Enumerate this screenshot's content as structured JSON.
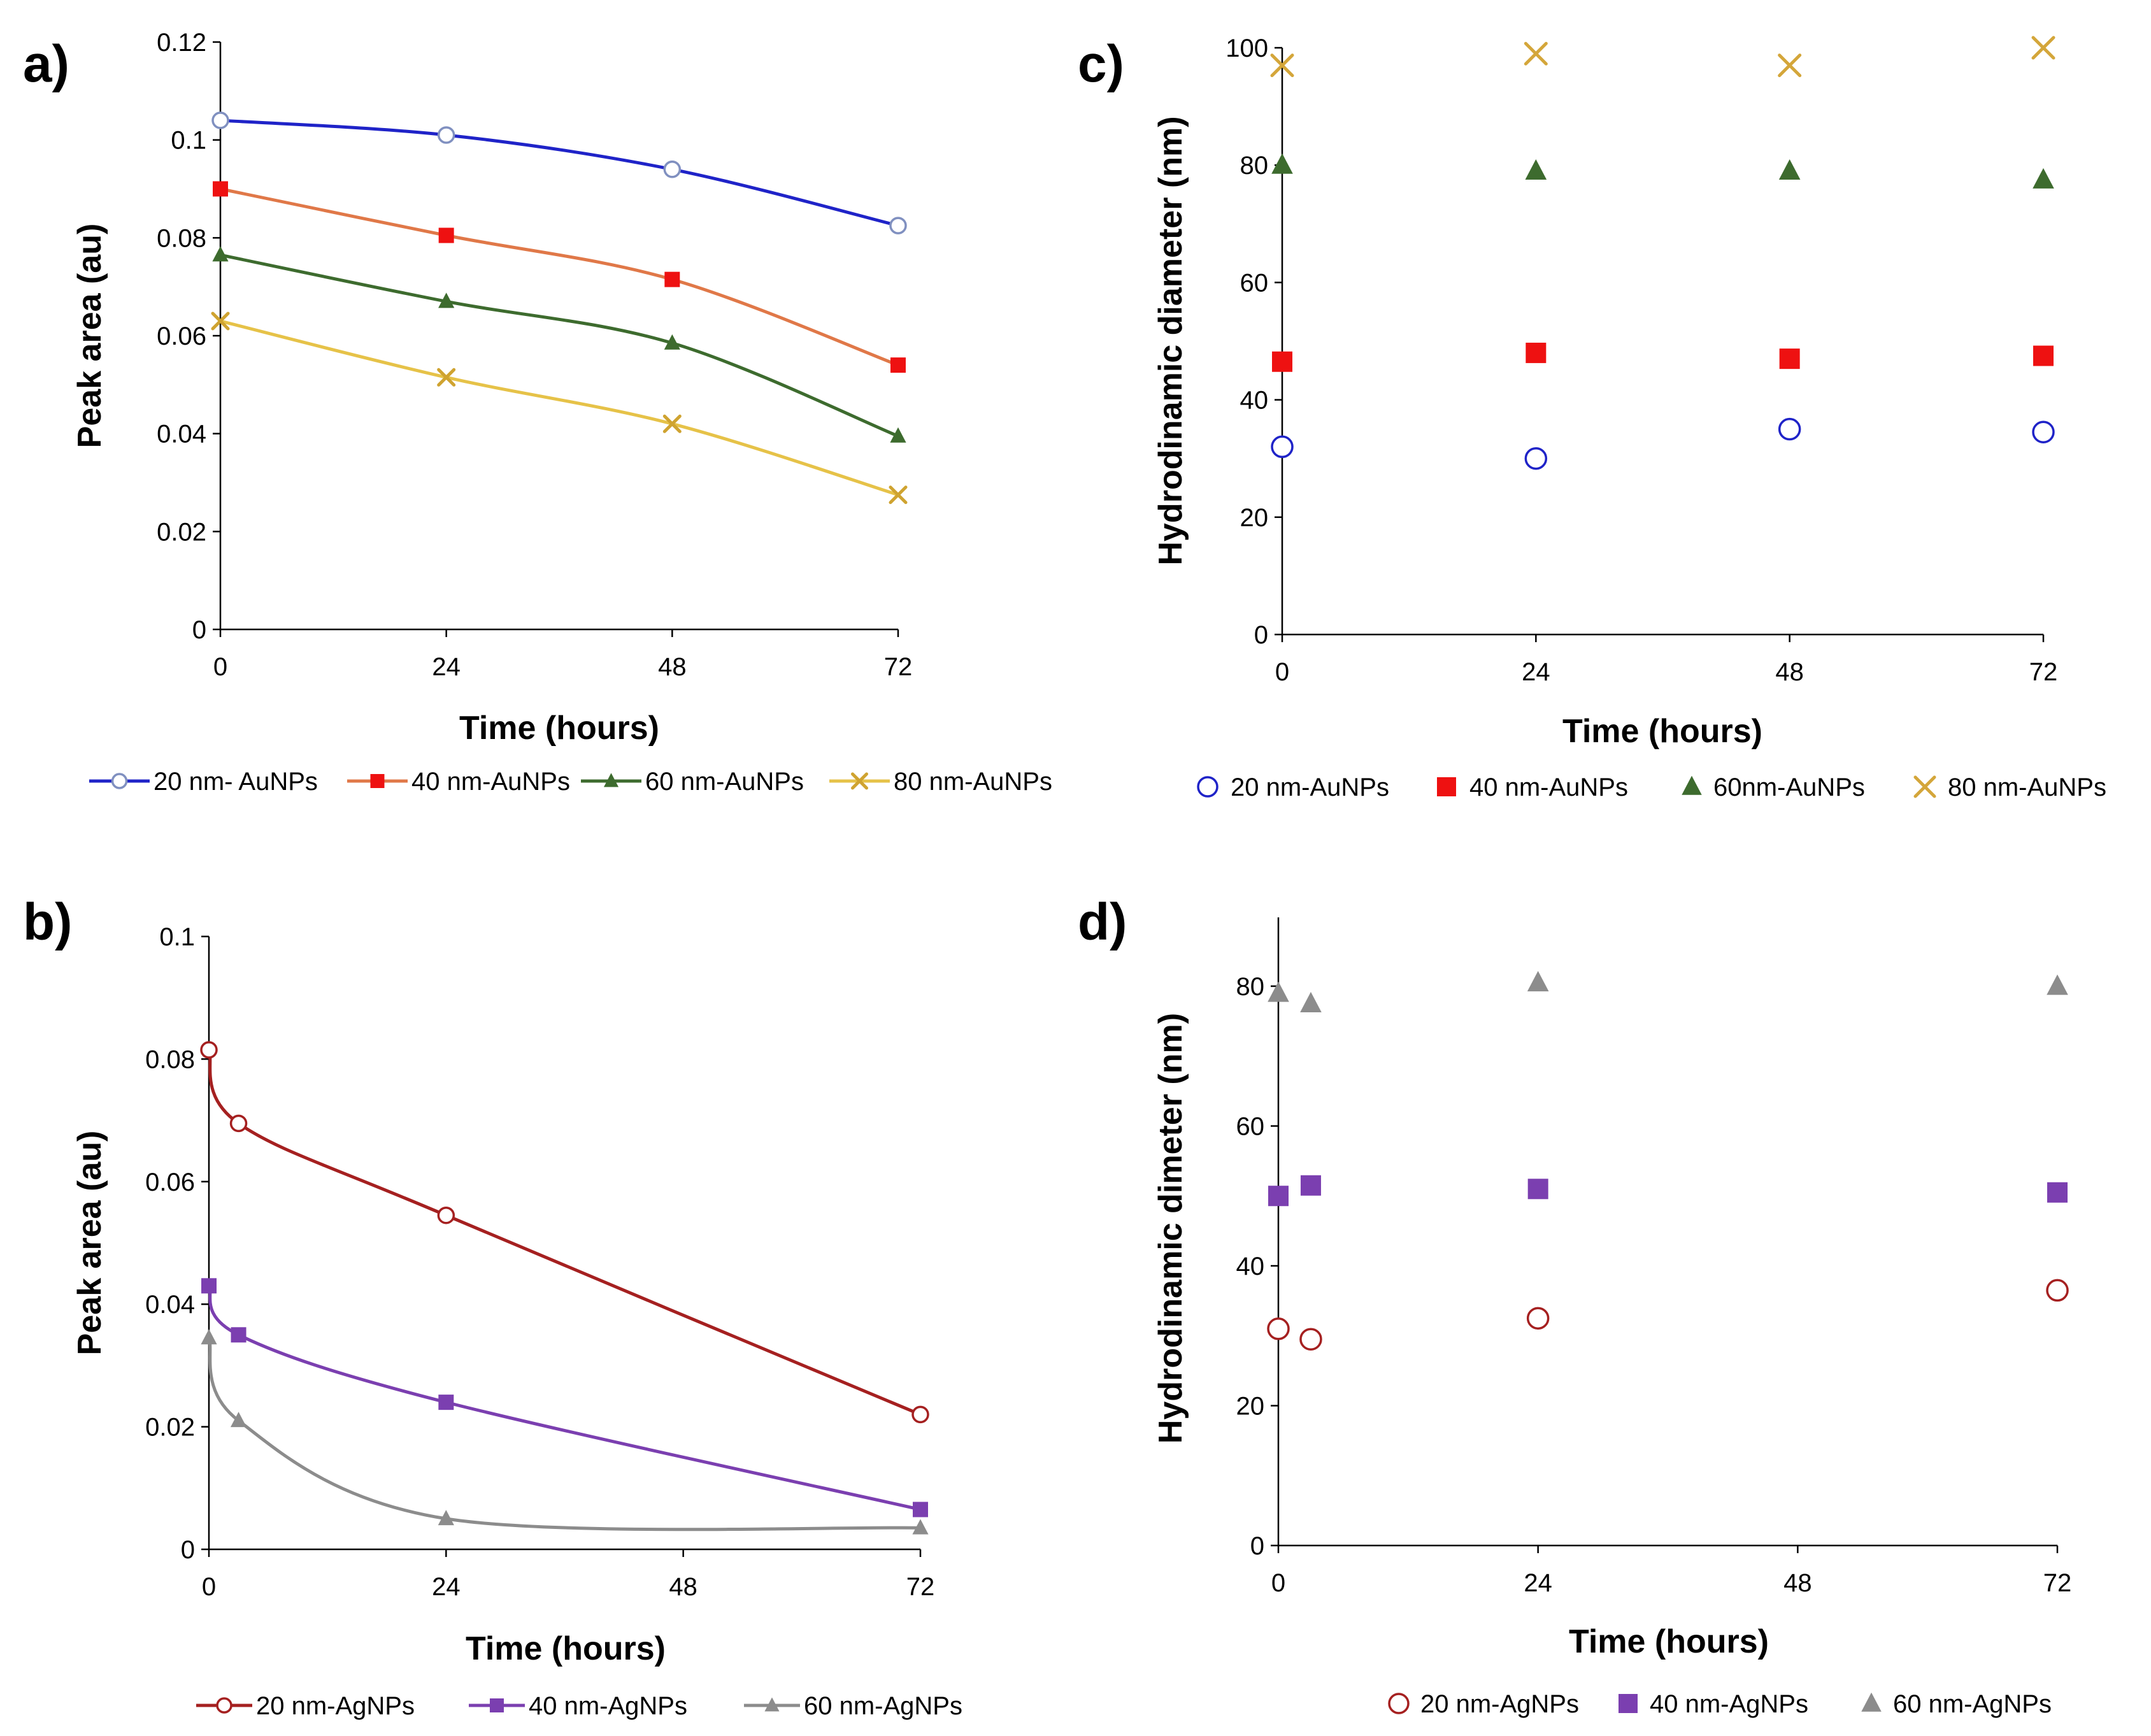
{
  "chart_data": [
    {
      "panel": "a)",
      "type": "line",
      "xlabel": "Time (hours)",
      "ylabel": "Peak area (au)",
      "ylim": [
        0,
        0.12
      ],
      "yticks": [
        "0",
        "0.02",
        "0.04",
        "0.06",
        "0.08",
        "0.1",
        "0.12"
      ],
      "xticks": [
        "0",
        "24",
        "48",
        "72"
      ],
      "xlim": [
        0,
        72
      ],
      "series": [
        {
          "name": "20 nm- AuNPs",
          "color": "#1f23c8",
          "marker": "circle-open",
          "marker_color": "#8090c0",
          "x": [
            0,
            24,
            48,
            72
          ],
          "y": [
            0.104,
            0.101,
            0.094,
            0.0825
          ]
        },
        {
          "name": "40 nm-AuNPs",
          "color": "#e07848",
          "marker": "square",
          "marker_color": "#ee1111",
          "x": [
            0,
            24,
            48,
            72
          ],
          "y": [
            0.09,
            0.0805,
            0.0715,
            0.054
          ]
        },
        {
          "name": "60 nm-AuNPs",
          "color": "#3d6b2e",
          "marker": "triangle",
          "marker_color": "#3d6b2e",
          "x": [
            0,
            24,
            48,
            72
          ],
          "y": [
            0.0765,
            0.067,
            0.0585,
            0.0395
          ]
        },
        {
          "name": "80 nm-AuNPs",
          "color": "#e6c248",
          "marker": "x",
          "marker_color": "#cfa330",
          "x": [
            0,
            24,
            48,
            72
          ],
          "y": [
            0.063,
            0.0515,
            0.042,
            0.0275
          ]
        }
      ]
    },
    {
      "panel": "b)",
      "type": "line",
      "xlabel": "Time (hours)",
      "ylabel": "Peak area (au)",
      "ylim": [
        0,
        0.1
      ],
      "yticks": [
        "0",
        "0.02",
        "0.04",
        "0.06",
        "0.08",
        "0.1"
      ],
      "xticks": [
        "0",
        "24",
        "48",
        "72"
      ],
      "xlim": [
        0,
        72
      ],
      "series": [
        {
          "name": "20 nm-AgNPs",
          "color": "#a52020",
          "marker": "circle-open",
          "marker_color": "#a52020",
          "x": [
            0,
            3,
            24,
            72
          ],
          "y": [
            0.0815,
            0.0695,
            0.0545,
            0.022
          ]
        },
        {
          "name": "40 nm-AgNPs",
          "color": "#7b3fb0",
          "marker": "square",
          "marker_color": "#7b3fb0",
          "x": [
            0,
            3,
            24,
            72
          ],
          "y": [
            0.043,
            0.035,
            0.024,
            0.0065
          ]
        },
        {
          "name": "60 nm-AgNPs",
          "color": "#8c8c8c",
          "marker": "triangle",
          "marker_color": "#8c8c8c",
          "x": [
            0,
            3,
            24,
            72
          ],
          "y": [
            0.0345,
            0.021,
            0.005,
            0.0035
          ]
        }
      ]
    },
    {
      "panel": "c)",
      "type": "scatter",
      "xlabel": "Time (hours)",
      "ylabel": "Hydrodinamic diameter (nm)",
      "ylim": [
        0,
        100
      ],
      "yticks": [
        "0",
        "20",
        "40",
        "60",
        "80",
        "100"
      ],
      "xticks": [
        "0",
        "24",
        "48",
        "72"
      ],
      "xlim": [
        0,
        72
      ],
      "series": [
        {
          "name": "20 nm-AuNPs",
          "marker": "circle-open",
          "marker_color": "#1f23c8",
          "x": [
            0,
            24,
            48,
            72
          ],
          "y": [
            32,
            30,
            35,
            34.5
          ]
        },
        {
          "name": "40 nm-AuNPs",
          "marker": "square",
          "marker_color": "#ee1111",
          "x": [
            0,
            24,
            48,
            72
          ],
          "y": [
            46.5,
            48,
            47,
            47.5
          ]
        },
        {
          "name": "60nm-AuNPs",
          "marker": "triangle",
          "marker_color": "#3d6b2e",
          "x": [
            0,
            24,
            48,
            72
          ],
          "y": [
            80,
            79,
            79,
            77.5
          ]
        },
        {
          "name": "80 nm-AuNPs",
          "marker": "x",
          "marker_color": "#d4a63a",
          "x": [
            0,
            24,
            48,
            72
          ],
          "y": [
            97,
            99,
            97,
            100
          ]
        }
      ]
    },
    {
      "panel": "d)",
      "type": "scatter",
      "xlabel": "Time (hours)",
      "ylabel": "Hydrodinamic dimeter (nm)",
      "ylim": [
        0,
        90
      ],
      "yticks": [
        "0",
        "20",
        "40",
        "60",
        "80"
      ],
      "ytick_values": [
        0,
        20,
        40,
        60,
        80
      ],
      "xticks": [
        "0",
        "24",
        "48",
        "72"
      ],
      "xlim": [
        0,
        72
      ],
      "series": [
        {
          "name": "20 nm-AgNPs",
          "marker": "circle-open",
          "marker_color": "#a52020",
          "x": [
            0,
            3,
            24,
            72
          ],
          "y": [
            31,
            29.5,
            32.5,
            36.5
          ]
        },
        {
          "name": "40 nm-AgNPs",
          "marker": "square",
          "marker_color": "#7b3fb0",
          "x": [
            0,
            3,
            24,
            72
          ],
          "y": [
            50,
            51.5,
            51,
            50.5
          ]
        },
        {
          "name": "60 nm-AgNPs",
          "marker": "triangle",
          "marker_color": "#8c8c8c",
          "x": [
            0,
            3,
            24,
            72
          ],
          "y": [
            79,
            77.5,
            80.5,
            80
          ]
        }
      ]
    }
  ]
}
